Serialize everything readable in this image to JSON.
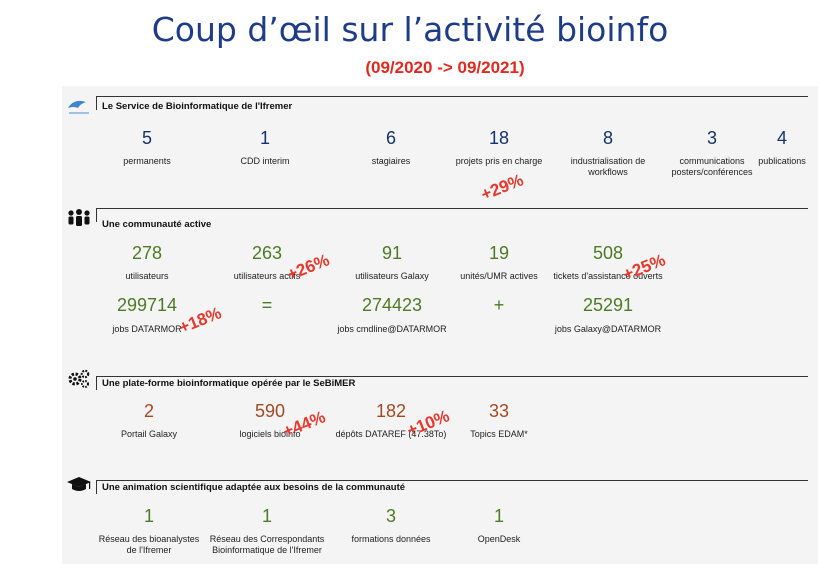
{
  "title": "Coup d’œil sur l’activité bioinfo",
  "subtitle": "(09/2020 -> 09/2021)",
  "sections": {
    "service": {
      "heading": "Le Service de Bioinformatique de l'Ifremer",
      "icon": "ifremer-logo",
      "stats": [
        {
          "value": "5",
          "label": "permanents"
        },
        {
          "value": "1",
          "label": "CDD interim"
        },
        {
          "value": "6",
          "label": "stagiaires"
        },
        {
          "value": "18",
          "label": "projets pris en charge"
        },
        {
          "value": "8",
          "label": "industrialisation de workflows"
        },
        {
          "value": "3",
          "label": "communications posters/conférences"
        },
        {
          "value": "4",
          "label": "publications"
        }
      ],
      "deltas": [
        "+29%"
      ]
    },
    "community": {
      "heading": "Une communauté active",
      "icon": "people-icon",
      "row1": [
        {
          "value": "278",
          "label": "utilisateurs"
        },
        {
          "value": "263",
          "label": "utilisateurs actifs"
        },
        {
          "value": "91",
          "label": "utilisateurs Galaxy"
        },
        {
          "value": "19",
          "label": "unités/UMR actives"
        },
        {
          "value": "508",
          "label": "tickets d'assistance ouverts"
        }
      ],
      "row2": [
        {
          "value": "299714",
          "label": "jobs DATARMOR"
        },
        {
          "value": "274423",
          "label": "jobs cmdline@DATARMOR"
        },
        {
          "value": "25291",
          "label": "jobs Galaxy@DATARMOR"
        }
      ],
      "equals": "=",
      "plus": "+",
      "deltas": [
        "+26%",
        "+25%",
        "+18%"
      ]
    },
    "platform": {
      "heading": "Une plate-forme bioinformatique opérée par le SeBiMER",
      "icon": "gears-icon",
      "stats": [
        {
          "value": "2",
          "label": "Portail Galaxy"
        },
        {
          "value": "590",
          "label": "logiciels bioinfo"
        },
        {
          "value": "182",
          "label": "dépôts DATAREF (47.38To)"
        },
        {
          "value": "33",
          "label": "Topics EDAM*"
        }
      ],
      "deltas": [
        "+44%",
        "+10%"
      ]
    },
    "animation": {
      "heading": "Une animation scientifique adaptée aux besoins de la communauté",
      "icon": "graduation-cap-icon",
      "stats": [
        {
          "value": "1",
          "label": "Réseau des bioanalystes de l'Ifremer"
        },
        {
          "value": "1",
          "label": "Réseau des Correspondants Bioinformatique de l'Ifremer"
        },
        {
          "value": "3",
          "label": "formations données"
        },
        {
          "value": "1",
          "label": "OpenDesk"
        }
      ]
    }
  },
  "colors": {
    "title": "#1f3c88",
    "accent_red": "#e5392e",
    "value_blue": "#15326e",
    "value_green": "#4d7a27",
    "value_brown": "#a34a22"
  }
}
